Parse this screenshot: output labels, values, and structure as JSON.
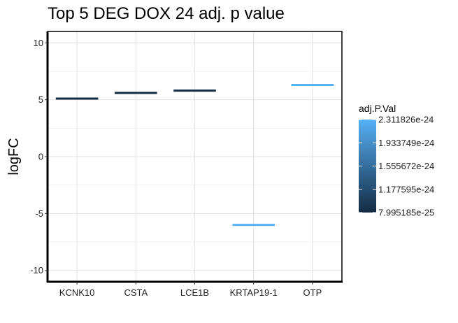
{
  "chart_data": {
    "type": "bar",
    "title": "Top 5 DEG DOX 24 adj. p value",
    "xlabel": "",
    "ylabel": "logFC",
    "categories": [
      "KCNK10",
      "CSTA",
      "LCE1B",
      "KRTAP19-1",
      "OTP"
    ],
    "values": [
      5.1,
      5.6,
      5.8,
      -6.0,
      6.3
    ],
    "color_values": [
      7.995185e-25,
      7.995185e-25,
      7.995185e-25,
      2.311826e-24,
      2.311826e-24
    ],
    "ylim": [
      -11,
      11
    ],
    "yticks": [
      -10,
      -5,
      0,
      5,
      10
    ],
    "ytick_labels": [
      "-10",
      "-5",
      "0",
      "5",
      "10"
    ],
    "grid": true,
    "legend": {
      "title": "adj.P.Val",
      "position": "right",
      "colorbar_min": 7.995185e-25,
      "colorbar_max": 2.311826e-24,
      "tick_values": [
        7.995185e-25,
        1.177595e-24,
        1.555672e-24,
        1.933749e-24,
        2.311826e-24
      ],
      "tick_labels": [
        "7.995185e-25",
        "1.177595e-24",
        "1.555672e-24",
        "1.933749e-24",
        "2.311826e-24"
      ],
      "color_low": "#132B43",
      "color_high": "#56B1F7"
    }
  }
}
